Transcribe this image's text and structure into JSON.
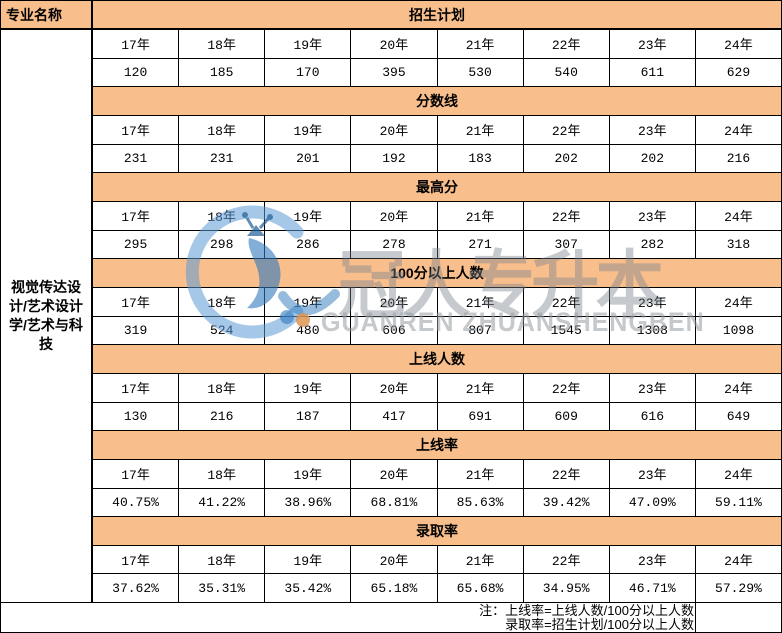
{
  "table": {
    "corner_header": "专业名称",
    "major_name": "视觉传达设计/艺术设计学/艺术与科技",
    "years": [
      "17年",
      "18年",
      "19年",
      "20年",
      "21年",
      "22年",
      "23年",
      "24年"
    ],
    "sections": [
      {
        "label": "招生计划",
        "values": [
          "120",
          "185",
          "170",
          "395",
          "530",
          "540",
          "611",
          "629"
        ]
      },
      {
        "label": "分数线",
        "values": [
          "231",
          "231",
          "201",
          "192",
          "183",
          "202",
          "202",
          "216"
        ]
      },
      {
        "label": "最高分",
        "values": [
          "295",
          "298",
          "286",
          "278",
          "271",
          "307",
          "282",
          "318"
        ]
      },
      {
        "label": "100分以上人数",
        "values": [
          "319",
          "524",
          "480",
          "606",
          "807",
          "1545",
          "1308",
          "1098"
        ]
      },
      {
        "label": "上线人数",
        "values": [
          "130",
          "216",
          "187",
          "417",
          "691",
          "609",
          "616",
          "649"
        ]
      },
      {
        "label": "上线率",
        "values": [
          "40.75%",
          "41.22%",
          "38.96%",
          "68.81%",
          "85.63%",
          "39.42%",
          "47.09%",
          "59.11%"
        ]
      },
      {
        "label": "录取率",
        "values": [
          "37.62%",
          "35.31%",
          "35.42%",
          "65.18%",
          "65.68%",
          "34.95%",
          "46.71%",
          "57.29%"
        ]
      }
    ],
    "note_line1": "注：上线率=上线人数/100分以上人数",
    "note_line2": "录取率=招生计划/100分以上人数"
  },
  "watermark": {
    "logo_icon": "guanren-logo-icon",
    "cn_text": "冠人专升本",
    "latin_text": "GUANREN ZHUANSHENGBEN"
  },
  "colors": {
    "band_orange": "#F8BF8D",
    "border_black": "#000000",
    "watermark_blue": "#5B9BD5",
    "watermark_gray": "#9EA6AE",
    "watermark_dot_orange": "#DD9454"
  },
  "chart_data": {
    "type": "table",
    "title": "视觉传达设计/艺术设计学/艺术与科技 专升本历年数据",
    "row_header": "视觉传达设计/艺术设计学/艺术与科技",
    "categories": [
      "17年",
      "18年",
      "19年",
      "20年",
      "21年",
      "22年",
      "23年",
      "24年"
    ],
    "series": [
      {
        "name": "招生计划",
        "values": [
          120,
          185,
          170,
          395,
          530,
          540,
          611,
          629
        ]
      },
      {
        "name": "分数线",
        "values": [
          231,
          231,
          201,
          192,
          183,
          202,
          202,
          216
        ]
      },
      {
        "name": "最高分",
        "values": [
          295,
          298,
          286,
          278,
          271,
          307,
          282,
          318
        ]
      },
      {
        "name": "100分以上人数",
        "values": [
          319,
          524,
          480,
          606,
          807,
          1545,
          1308,
          1098
        ]
      },
      {
        "name": "上线人数",
        "values": [
          130,
          216,
          187,
          417,
          691,
          609,
          616,
          649
        ]
      },
      {
        "name": "上线率",
        "values": [
          "40.75%",
          "41.22%",
          "38.96%",
          "68.81%",
          "85.63%",
          "39.42%",
          "47.09%",
          "59.11%"
        ]
      },
      {
        "name": "录取率",
        "values": [
          "37.62%",
          "35.31%",
          "35.42%",
          "65.18%",
          "65.68%",
          "34.95%",
          "46.71%",
          "57.29%"
        ]
      }
    ],
    "annotations": [
      "注：上线率=上线人数/100分以上人数",
      "录取率=招生计划/100分以上人数"
    ],
    "legend_position": "none",
    "grid": true
  }
}
